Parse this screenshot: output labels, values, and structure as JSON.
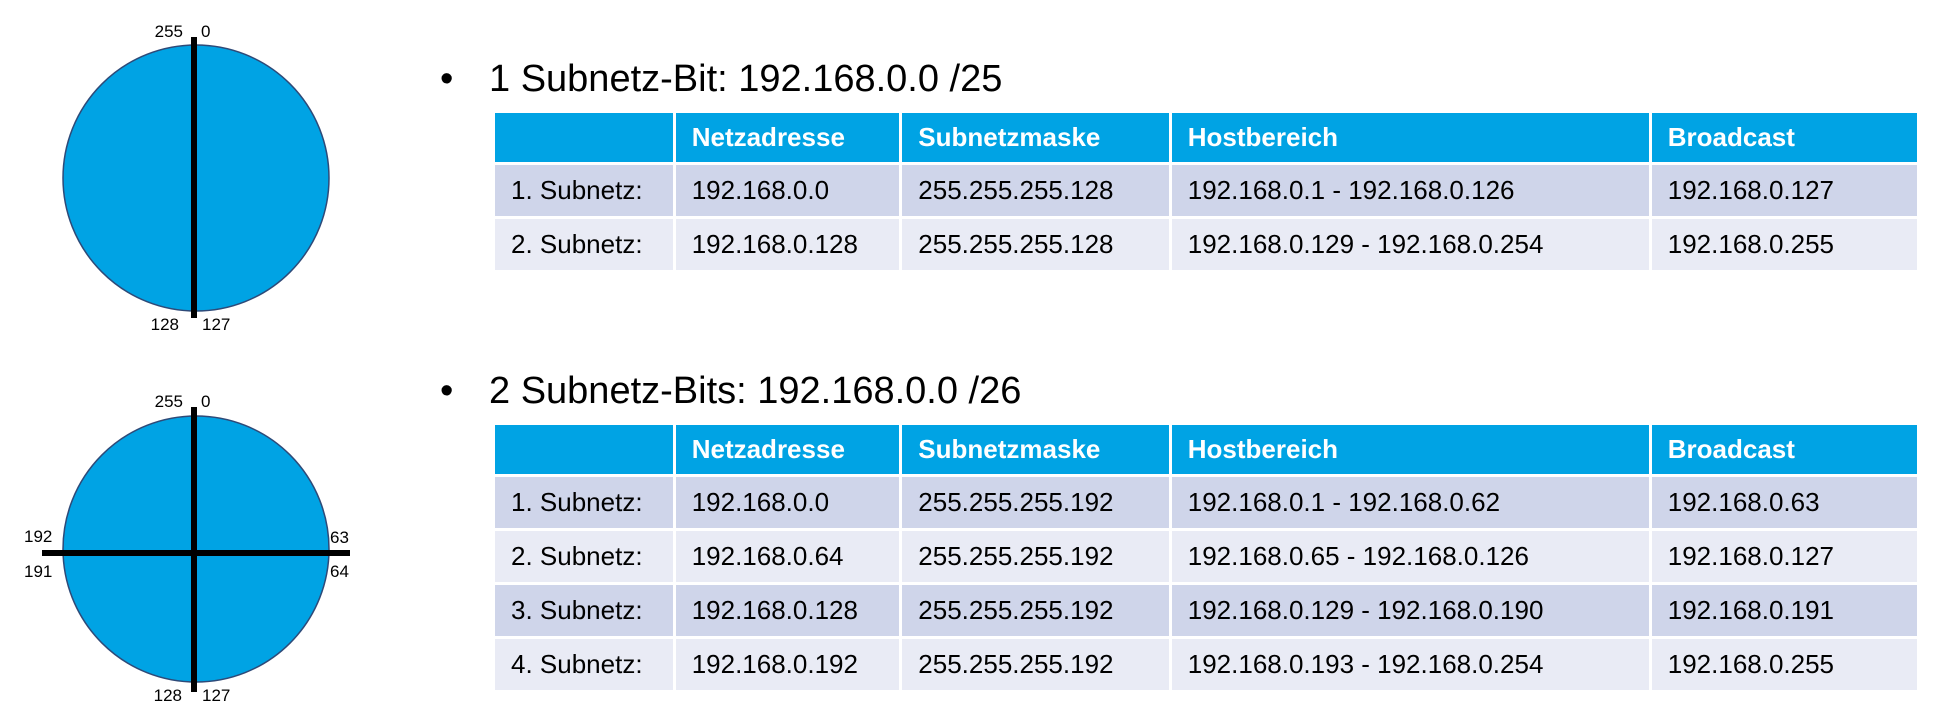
{
  "colors": {
    "header_bg": "#00a3e4",
    "header_text": "#ffffff",
    "row_odd": "#cfd5ea",
    "row_even": "#e9ebf5",
    "circle_fill": "#00a3e4",
    "divider": "#000000"
  },
  "diagram1": {
    "labels": {
      "top_left": "255",
      "top_right": "0",
      "bottom_left": "128",
      "bottom_right": "127"
    }
  },
  "diagram2": {
    "labels": {
      "top_left": "255",
      "top_right": "0",
      "left_upper": "192",
      "left_lower": "191",
      "right_upper": "63",
      "right_lower": "64",
      "bottom_left": "128",
      "bottom_right": "127"
    }
  },
  "section1": {
    "bullet": "•",
    "heading": "1 Subnetz-Bit: 192.168.0.0 /25",
    "headers": [
      "",
      "Netzadresse",
      "Subnetzmaske",
      "Hostbereich",
      "Broadcast"
    ],
    "rows": [
      [
        "1. Subnetz:",
        "192.168.0.0",
        "255.255.255.128",
        "192.168.0.1 - 192.168.0.126",
        "192.168.0.127"
      ],
      [
        "2. Subnetz:",
        "192.168.0.128",
        "255.255.255.128",
        "192.168.0.129 - 192.168.0.254",
        "192.168.0.255"
      ]
    ]
  },
  "section2": {
    "bullet": "•",
    "heading": "2 Subnetz-Bits: 192.168.0.0 /26",
    "headers": [
      "",
      "Netzadresse",
      "Subnetzmaske",
      "Hostbereich",
      "Broadcast"
    ],
    "rows": [
      [
        "1. Subnetz:",
        "192.168.0.0",
        "255.255.255.192",
        "192.168.0.1 - 192.168.0.62",
        "192.168.0.63"
      ],
      [
        "2. Subnetz:",
        "192.168.0.64",
        "255.255.255.192",
        "192.168.0.65 - 192.168.0.126",
        "192.168.0.127"
      ],
      [
        "3. Subnetz:",
        "192.168.0.128",
        "255.255.255.192",
        "192.168.0.129 - 192.168.0.190",
        "192.168.0.191"
      ],
      [
        "4. Subnetz:",
        "192.168.0.192",
        "255.255.255.192",
        "192.168.0.193 - 192.168.0.254",
        "192.168.0.255"
      ]
    ]
  }
}
